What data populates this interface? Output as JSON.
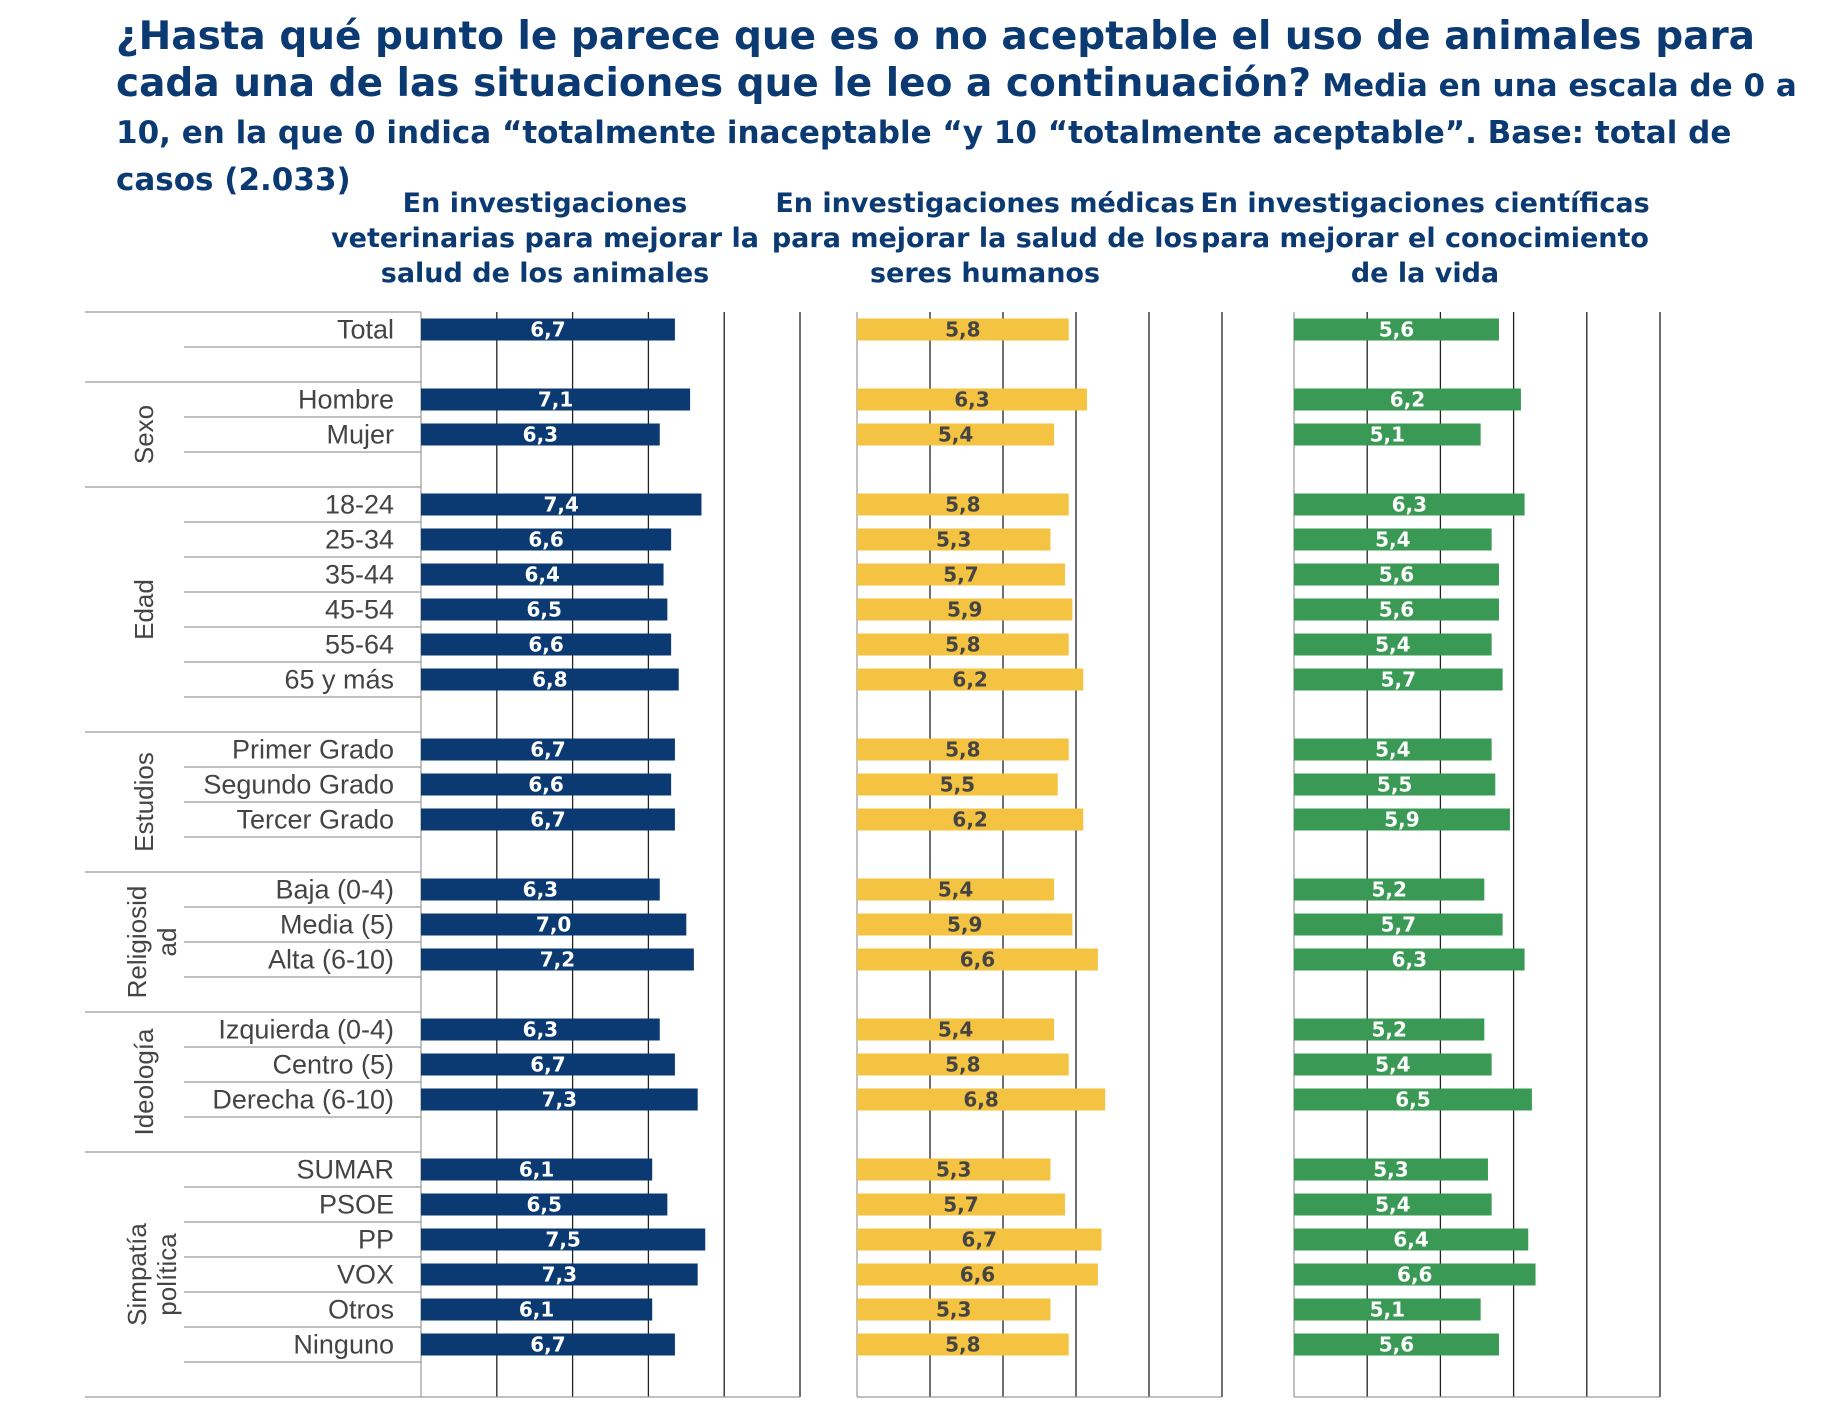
{
  "title": {
    "main": "¿Hasta qué punto le parece que es o no aceptable el uso de animales para cada una de las situaciones que le leo a continuación?",
    "sub": "Media en una escala de 0 a 10,  en la que 0 indica “totalmente inaceptable “y 10 “totalmente aceptable”. Base: total de casos (2.033)"
  },
  "chart_data": {
    "type": "bar",
    "orientation": "horizontal",
    "xlim": [
      0,
      10
    ],
    "ticks": [
      0,
      2,
      4,
      6,
      8,
      10
    ],
    "grid": true,
    "groups": [
      {
        "name": "",
        "categories": [
          "Total"
        ]
      },
      {
        "name": "Sexo",
        "categories": [
          "Hombre",
          "Mujer"
        ]
      },
      {
        "name": "Edad",
        "categories": [
          "18-24",
          "25-34",
          "35-44",
          "45-54",
          "55-64",
          "65 y más"
        ]
      },
      {
        "name": "Estudios",
        "categories": [
          "Primer Grado",
          "Segundo Grado",
          "Tercer Grado"
        ]
      },
      {
        "name": "Religiosid ad",
        "categories": [
          "Baja (0-4)",
          "Media (5)",
          "Alta (6-10)"
        ]
      },
      {
        "name": "Ideología",
        "categories": [
          "Izquierda (0-4)",
          "Centro (5)",
          "Derecha (6-10)"
        ]
      },
      {
        "name": "Simpatía política",
        "categories": [
          "SUMAR",
          "PSOE",
          "PP",
          "VOX",
          "Otros",
          "Ninguno"
        ]
      }
    ],
    "series": [
      {
        "name": "En investigaciones veterinarias para mejorar la salud de los animales",
        "color": "#0b3a72",
        "label_color": "#ffffff",
        "values": [
          6.7,
          7.1,
          6.3,
          7.4,
          6.6,
          6.4,
          6.5,
          6.6,
          6.8,
          6.7,
          6.6,
          6.7,
          6.3,
          7.0,
          7.2,
          6.3,
          6.7,
          7.3,
          6.1,
          6.5,
          7.5,
          7.3,
          6.1,
          6.7
        ],
        "labels": [
          "6,7",
          "7,1",
          "6,3",
          "7,4",
          "6,6",
          "6,4",
          "6,5",
          "6,6",
          "6,8",
          "6,7",
          "6,6",
          "6,7",
          "6,3",
          "7,0",
          "7,2",
          "6,3",
          "6,7",
          "7,3",
          "6,1",
          "6,5",
          "7,5",
          "7,3",
          "6,1",
          "6,7"
        ]
      },
      {
        "name": "En investigaciones médicas para mejorar la salud de los seres humanos",
        "color": "#f5c342",
        "label_color": "#444444",
        "values": [
          5.8,
          6.3,
          5.4,
          5.8,
          5.3,
          5.7,
          5.9,
          5.8,
          6.2,
          5.8,
          5.5,
          6.2,
          5.4,
          5.9,
          6.6,
          5.4,
          5.8,
          6.8,
          5.3,
          5.7,
          6.7,
          6.6,
          5.3,
          5.8
        ],
        "labels": [
          "5,8",
          "6,3",
          "5,4",
          "5,8",
          "5,3",
          "5,7",
          "5,9",
          "5,8",
          "6,2",
          "5,8",
          "5,5",
          "6,2",
          "5,4",
          "5,9",
          "6,6",
          "5,4",
          "5,8",
          "6,8",
          "5,3",
          "5,7",
          "6,7",
          "6,6",
          "5,3",
          "5,8"
        ]
      },
      {
        "name": "En investigaciones científicas para mejorar el conocimiento de la vida",
        "color": "#3a9a55",
        "label_color": "#ffffff",
        "values": [
          5.6,
          6.2,
          5.1,
          6.3,
          5.4,
          5.6,
          5.6,
          5.4,
          5.7,
          5.4,
          5.5,
          5.9,
          5.2,
          5.7,
          6.3,
          5.2,
          5.4,
          6.5,
          5.3,
          5.4,
          6.4,
          6.6,
          5.1,
          5.6
        ],
        "labels": [
          "5,6",
          "6,2",
          "5,1",
          "6,3",
          "5,4",
          "5,6",
          "5,6",
          "5,4",
          "5,7",
          "5,4",
          "5,5",
          "5,9",
          "5,2",
          "5,7",
          "6,3",
          "5,2",
          "5,4",
          "6,5",
          "5,3",
          "5,4",
          "6,4",
          "6,6",
          "5,1",
          "5,6"
        ]
      }
    ]
  }
}
